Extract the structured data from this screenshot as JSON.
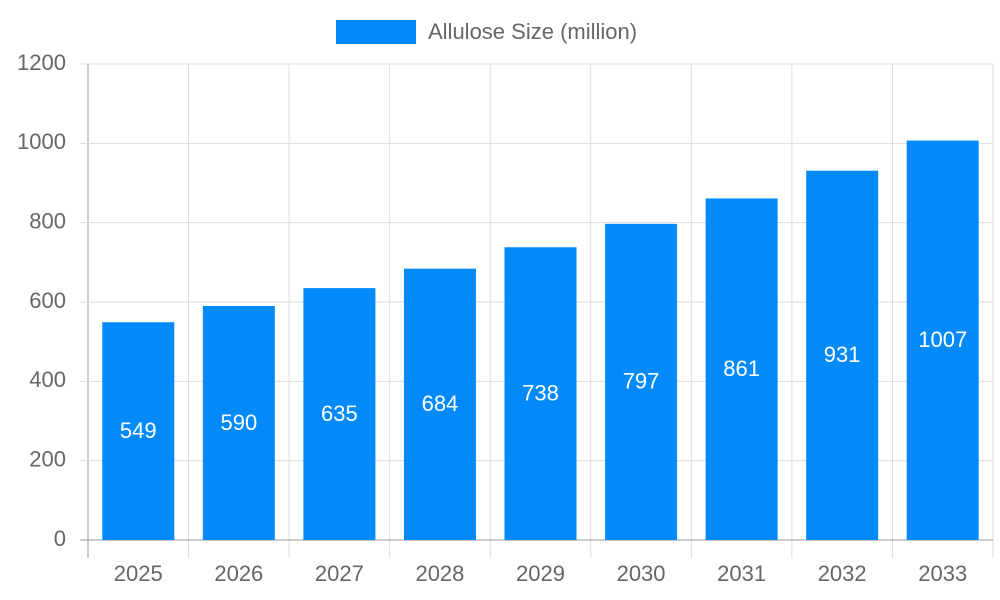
{
  "chart_data": {
    "type": "bar",
    "categories": [
      "2025",
      "2026",
      "2027",
      "2028",
      "2029",
      "2030",
      "2031",
      "2032",
      "2033"
    ],
    "series": [
      {
        "name": "Allulose Size (million)",
        "color": "#038afa",
        "values": [
          549,
          590,
          635,
          684,
          738,
          797,
          861,
          931,
          1007
        ]
      }
    ],
    "ylim": [
      0,
      1200
    ],
    "yticks": [
      0,
      200,
      400,
      600,
      800,
      1000,
      1200
    ],
    "grid": true,
    "legend": "top"
  }
}
